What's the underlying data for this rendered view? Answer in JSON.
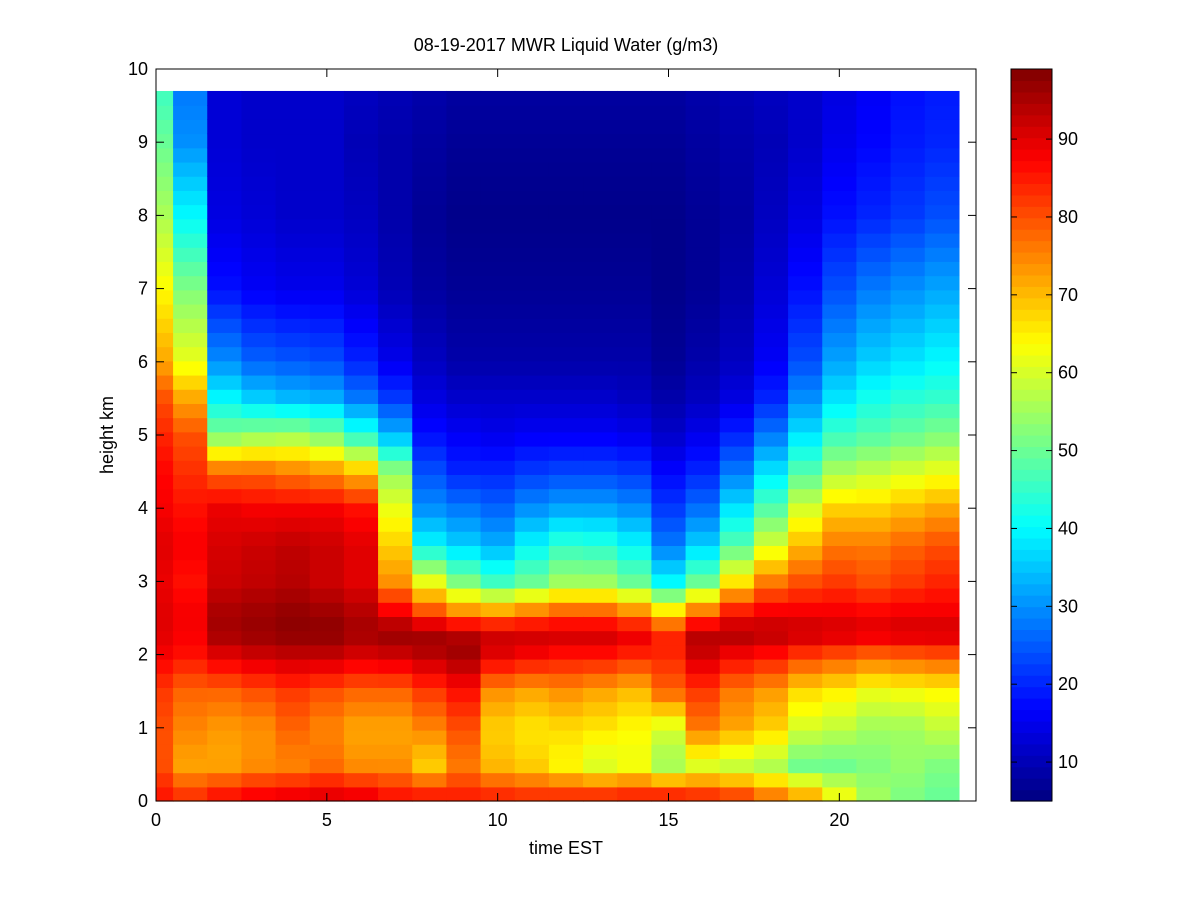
{
  "chart_data": {
    "type": "heatmap",
    "title": "08-19-2017 MWR Liquid Water (g/m3)",
    "xlabel": "time EST",
    "ylabel": "height km",
    "xlim": [
      0,
      24
    ],
    "ylim": [
      0,
      10
    ],
    "xticks": [
      0,
      5,
      10,
      15,
      20
    ],
    "yticks": [
      0,
      1,
      2,
      3,
      4,
      5,
      6,
      7,
      8,
      9,
      10
    ],
    "colorbar": {
      "ticks": [
        10,
        20,
        30,
        40,
        50,
        60,
        70,
        80,
        90
      ],
      "clim": [
        5,
        99
      ],
      "colormap": "jet"
    },
    "time_hours": [
      0,
      1,
      2,
      3,
      4,
      5,
      6,
      7,
      8,
      9,
      10,
      11,
      12,
      13,
      14,
      15,
      16,
      17,
      18,
      19,
      20,
      21,
      22,
      23
    ],
    "profile_heights_km": [
      0.1,
      0.5,
      1.0,
      1.5,
      2.0,
      2.3,
      2.6,
      3.0,
      3.5,
      4.0,
      4.5,
      5.0,
      5.5,
      6.0,
      7.0,
      8.0,
      9.0,
      9.7
    ],
    "values": [
      [
        85,
        82,
        85,
        87,
        88,
        89,
        88,
        85,
        84,
        84,
        83,
        82,
        82,
        82,
        83,
        83,
        82,
        80,
        75,
        70,
        62,
        55,
        52,
        50
      ],
      [
        80,
        72,
        72,
        74,
        75,
        77,
        74,
        74,
        68,
        76,
        70,
        68,
        64,
        60,
        62,
        55,
        60,
        58,
        56,
        50,
        50,
        52,
        54,
        52
      ],
      [
        80,
        75,
        73,
        74,
        78,
        75,
        72,
        72,
        75,
        80,
        68,
        66,
        67,
        66,
        64,
        60,
        76,
        72,
        68,
        60,
        58,
        55,
        55,
        58
      ],
      [
        82,
        78,
        78,
        80,
        82,
        80,
        78,
        78,
        82,
        86,
        74,
        72,
        74,
        72,
        70,
        78,
        82,
        76,
        73,
        67,
        65,
        62,
        63,
        64
      ],
      [
        88,
        86,
        90,
        92,
        93,
        93,
        91,
        92,
        94,
        96,
        90,
        88,
        86,
        86,
        84,
        84,
        92,
        88,
        86,
        82,
        80,
        78,
        79,
        80
      ],
      [
        90,
        88,
        96,
        97,
        98,
        98,
        96,
        97,
        96,
        94,
        92,
        92,
        92,
        92,
        90,
        84,
        94,
        95,
        94,
        93,
        92,
        91,
        92,
        92
      ],
      [
        90,
        88,
        95,
        96,
        97,
        96,
        94,
        88,
        80,
        74,
        72,
        75,
        78,
        78,
        74,
        66,
        76,
        85,
        88,
        88,
        88,
        87,
        88,
        88
      ],
      [
        89,
        86,
        92,
        93,
        94,
        92,
        90,
        74,
        62,
        52,
        46,
        50,
        55,
        55,
        50,
        40,
        50,
        66,
        76,
        80,
        82,
        80,
        82,
        84
      ],
      [
        90,
        88,
        91,
        92,
        93,
        92,
        90,
        68,
        40,
        36,
        33,
        40,
        45,
        44,
        40,
        28,
        36,
        48,
        60,
        70,
        76,
        76,
        78,
        80
      ],
      [
        88,
        86,
        89,
        88,
        88,
        88,
        86,
        62,
        30,
        28,
        26,
        30,
        32,
        32,
        30,
        22,
        27,
        38,
        48,
        60,
        68,
        68,
        70,
        72
      ],
      [
        87,
        83,
        78,
        78,
        76,
        74,
        70,
        54,
        24,
        20,
        20,
        22,
        23,
        23,
        22,
        17,
        20,
        28,
        38,
        48,
        56,
        58,
        60,
        62
      ],
      [
        84,
        80,
        52,
        54,
        55,
        52,
        44,
        34,
        18,
        16,
        15,
        16,
        16,
        16,
        15,
        12,
        15,
        20,
        28,
        38,
        46,
        48,
        50,
        52
      ],
      [
        80,
        72,
        40,
        36,
        34,
        33,
        28,
        22,
        14,
        12,
        12,
        12,
        12,
        12,
        11,
        9,
        11,
        14,
        20,
        30,
        38,
        42,
        44,
        45
      ],
      [
        72,
        62,
        30,
        26,
        25,
        24,
        20,
        15,
        11,
        9,
        9,
        9,
        9,
        9,
        9,
        7,
        9,
        11,
        16,
        24,
        32,
        36,
        38,
        40
      ],
      [
        64,
        52,
        18,
        16,
        15,
        15,
        13,
        10,
        8,
        7,
        7,
        7,
        7,
        7,
        7,
        6,
        7,
        9,
        13,
        18,
        24,
        28,
        30,
        32
      ],
      [
        56,
        40,
        14,
        13,
        12,
        12,
        11,
        9,
        7,
        6,
        6,
        6,
        6,
        6,
        6,
        6,
        7,
        8,
        11,
        14,
        18,
        20,
        22,
        24
      ],
      [
        50,
        30,
        13,
        12,
        12,
        12,
        10,
        9,
        8,
        7,
        7,
        7,
        7,
        7,
        7,
        7,
        8,
        9,
        10,
        12,
        15,
        17,
        19,
        20
      ],
      [
        46,
        28,
        13,
        12,
        12,
        12,
        11,
        10,
        9,
        8,
        8,
        8,
        8,
        8,
        8,
        8,
        9,
        10,
        11,
        12,
        14,
        16,
        18,
        19
      ]
    ]
  }
}
